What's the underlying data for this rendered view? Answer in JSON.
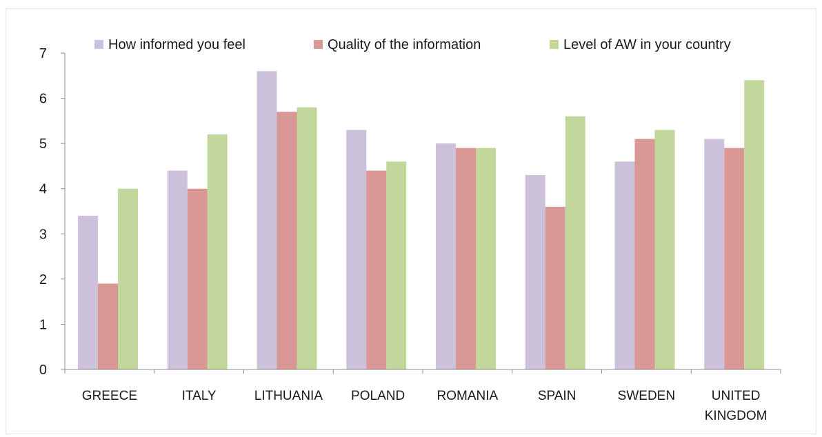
{
  "chart_data": {
    "type": "bar",
    "title": "",
    "xlabel": "",
    "ylabel": "",
    "ylim": [
      0,
      7
    ],
    "yticks": [
      "0",
      "1",
      "2",
      "3",
      "4",
      "5",
      "6",
      "7"
    ],
    "grid": false,
    "legend_position": "top",
    "categories": [
      "GREECE",
      "ITALY",
      "LITHUANIA",
      "POLAND",
      "ROMANIA",
      "SPAIN",
      "SWEDEN",
      "UNITED KINGDOM"
    ],
    "category_lines": [
      [
        "GREECE"
      ],
      [
        "ITALY"
      ],
      [
        "LITHUANIA"
      ],
      [
        "POLAND"
      ],
      [
        "ROMANIA"
      ],
      [
        "SPAIN"
      ],
      [
        "SWEDEN"
      ],
      [
        "UNITED",
        "KINGDOM"
      ]
    ],
    "series": [
      {
        "name": "How informed you feel",
        "color": "#ccc1da",
        "values": [
          3.4,
          4.4,
          6.6,
          5.3,
          5.0,
          4.3,
          4.6,
          5.1
        ]
      },
      {
        "name": "Quality of the information",
        "color": "#d99795",
        "values": [
          1.9,
          4.0,
          5.7,
          4.4,
          4.9,
          3.6,
          5.1,
          4.9
        ]
      },
      {
        "name": "Level of AW in your country",
        "color": "#c3d69b",
        "values": [
          4.0,
          5.2,
          5.8,
          4.6,
          4.9,
          5.6,
          5.3,
          6.4
        ]
      }
    ]
  }
}
